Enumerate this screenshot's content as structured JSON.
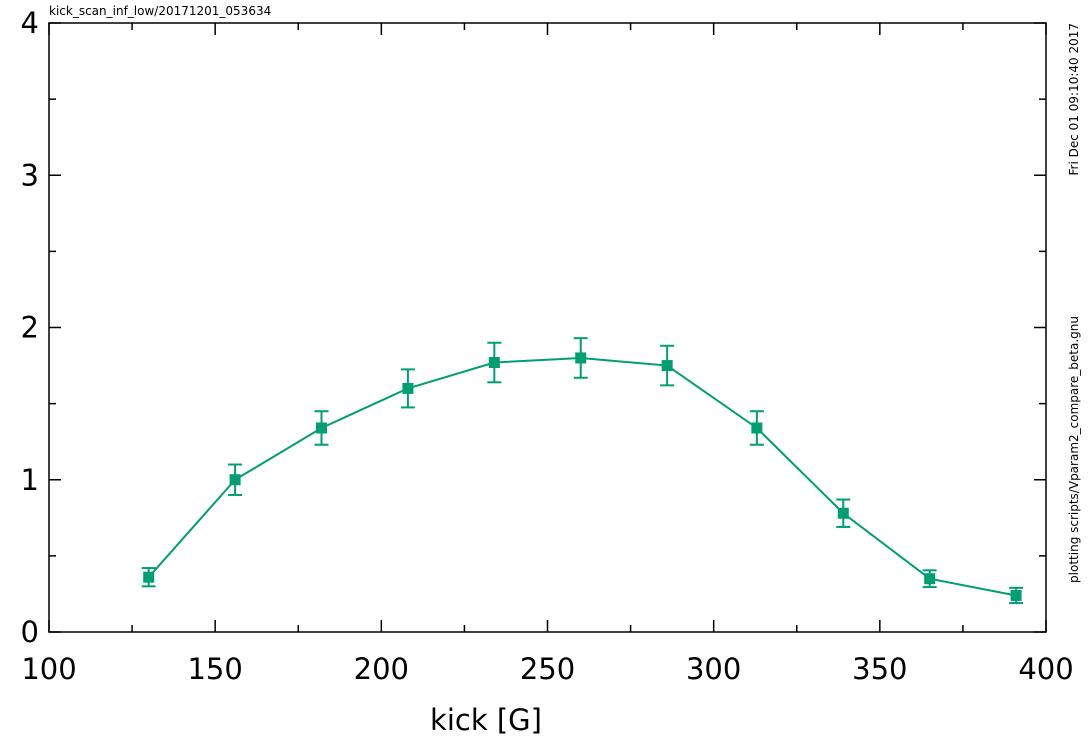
{
  "chart_data": {
    "type": "line",
    "title": "kick_scan_inf_low/20171201_053634",
    "xlabel": "kick [G]",
    "ylabel": "",
    "xlim": [
      100,
      400
    ],
    "ylim": [
      0,
      4
    ],
    "x_ticks": [
      100,
      150,
      200,
      250,
      300,
      350,
      400
    ],
    "y_ticks": [
      0,
      1,
      2,
      3,
      4
    ],
    "x_tick_labels": [
      "100",
      "150",
      "200",
      "250",
      "300",
      "350",
      "400"
    ],
    "y_tick_labels": [
      "0",
      "1",
      "2",
      "3",
      "4"
    ],
    "grid": false,
    "series": [
      {
        "color": "#009e73",
        "x": [
          130,
          156,
          182,
          208,
          234,
          260,
          286,
          313,
          339,
          365,
          391
        ],
        "y": [
          0.36,
          1.0,
          1.34,
          1.6,
          1.77,
          1.8,
          1.75,
          1.34,
          0.78,
          0.35,
          0.24
        ],
        "yerr": [
          0.06,
          0.1,
          0.11,
          0.125,
          0.13,
          0.13,
          0.13,
          0.11,
          0.09,
          0.055,
          0.05
        ]
      }
    ],
    "annotations": {
      "date": "Fri Dec 01 09:10:40 2017",
      "script": "plotting scripts/Vparam2_compare_beta.gnu"
    }
  }
}
